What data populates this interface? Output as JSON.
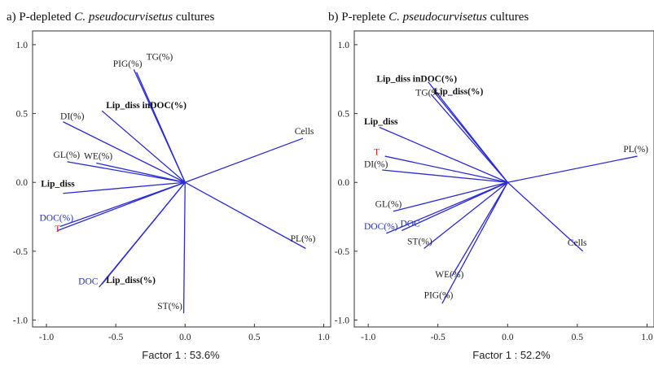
{
  "chart_data": [
    {
      "type": "biplot",
      "title": {
        "prefix": "a) P-depleted ",
        "species": "C. pseudocurvisetus",
        "suffix": " cultures"
      },
      "xlabel": "Factor 1 : 53.6%",
      "ylabel": "",
      "xlim": [
        -1.1,
        1.05
      ],
      "ylim": [
        -1.05,
        1.1
      ],
      "xticks": [
        "-1.0",
        "-0.5",
        "0.0",
        "0.5",
        "1.0"
      ],
      "yticks": [
        "1.0",
        "0.5",
        "0.0",
        "-0.5",
        "-1.0"
      ],
      "grid": false,
      "vectors": [
        {
          "label": "PIG(%)",
          "x": -0.37,
          "y": 0.82,
          "lx": -0.52,
          "ly": 0.84,
          "bold": false,
          "color": "#222222"
        },
        {
          "label": "TG(%)",
          "x": -0.35,
          "y": 0.8,
          "lx": -0.28,
          "ly": 0.89,
          "bold": false,
          "color": "#222222"
        },
        {
          "label": "Lip_diss inDOC(%)",
          "x": -0.6,
          "y": 0.52,
          "lx": -0.57,
          "ly": 0.54,
          "bold": true,
          "color": "#111111"
        },
        {
          "label": "DI(%)",
          "x": -0.88,
          "y": 0.44,
          "lx": -0.9,
          "ly": 0.46,
          "bold": false,
          "color": "#222222"
        },
        {
          "label": "Cells",
          "x": 0.85,
          "y": 0.32,
          "lx": 0.79,
          "ly": 0.35,
          "bold": false,
          "color": "#222222"
        },
        {
          "label": "GL(%)",
          "x": -0.85,
          "y": 0.15,
          "lx": -0.95,
          "ly": 0.18,
          "bold": false,
          "color": "#222222"
        },
        {
          "label": "WE(%)",
          "x": -0.64,
          "y": 0.14,
          "lx": -0.73,
          "ly": 0.17,
          "bold": false,
          "color": "#222222"
        },
        {
          "label": "Lip_diss",
          "x": -0.88,
          "y": -0.08,
          "lx": -1.04,
          "ly": -0.03,
          "bold": true,
          "color": "#111111"
        },
        {
          "label": "DOC(%)",
          "x": -0.9,
          "y": -0.32,
          "lx": -1.05,
          "ly": -0.28,
          "bold": false,
          "color": "#2233bb"
        },
        {
          "label": "T",
          "x": -0.92,
          "y": -0.35,
          "lx": -0.94,
          "ly": -0.36,
          "bold": false,
          "color": "#dd2222"
        },
        {
          "label": "PL(%)",
          "x": 0.87,
          "y": -0.48,
          "lx": 0.76,
          "ly": -0.43,
          "bold": false,
          "color": "#222222"
        },
        {
          "label": "DOC",
          "x": -0.62,
          "y": -0.76,
          "lx": -0.77,
          "ly": -0.74,
          "bold": false,
          "color": "#2233bb"
        },
        {
          "label": "Lip_diss(%)",
          "x": -0.6,
          "y": -0.74,
          "lx": -0.57,
          "ly": -0.73,
          "bold": true,
          "color": "#111111"
        },
        {
          "label": "ST(%)",
          "x": -0.01,
          "y": -0.95,
          "lx": -0.2,
          "ly": -0.92,
          "bold": false,
          "color": "#222222"
        }
      ]
    },
    {
      "type": "biplot",
      "title": {
        "prefix": "b) P-replete ",
        "species": "C. pseudocurvisetus",
        "suffix": " cultures"
      },
      "xlabel": "Factor 1 : 52.2%",
      "ylabel": "",
      "xlim": [
        -1.1,
        1.05
      ],
      "ylim": [
        -1.05,
        1.1
      ],
      "xticks": [
        "-1.0",
        "-0.5",
        "0.0",
        "0.5",
        "1.0"
      ],
      "yticks": [
        "1.0",
        "0.5",
        "0.0",
        "-0.5",
        "-1.0"
      ],
      "grid": false,
      "vectors": [
        {
          "label": "Lip_diss inDOC(%)",
          "x": -0.57,
          "y": 0.73,
          "lx": -0.94,
          "ly": 0.73,
          "bold": true,
          "color": "#111111"
        },
        {
          "label": "TG(%)",
          "x": -0.55,
          "y": 0.64,
          "lx": -0.66,
          "ly": 0.63,
          "bold": false,
          "color": "#222222"
        },
        {
          "label": "Lip_diss(%)",
          "x": -0.53,
          "y": 0.66,
          "lx": -0.53,
          "ly": 0.64,
          "bold": true,
          "color": "#111111"
        },
        {
          "label": "Lip_diss",
          "x": -0.92,
          "y": 0.4,
          "lx": -1.03,
          "ly": 0.42,
          "bold": true,
          "color": "#111111"
        },
        {
          "label": "T",
          "x": -0.88,
          "y": 0.19,
          "lx": -0.96,
          "ly": 0.2,
          "bold": false,
          "color": "#dd2222"
        },
        {
          "label": "DI(%)",
          "x": -0.9,
          "y": 0.09,
          "lx": -1.03,
          "ly": 0.11,
          "bold": false,
          "color": "#222222"
        },
        {
          "label": "PL(%)",
          "x": 0.93,
          "y": 0.19,
          "lx": 0.83,
          "ly": 0.22,
          "bold": false,
          "color": "#222222"
        },
        {
          "label": "GL(%)",
          "x": -0.82,
          "y": -0.21,
          "lx": -0.95,
          "ly": -0.18,
          "bold": false,
          "color": "#222222"
        },
        {
          "label": "DOC(%)",
          "x": -0.87,
          "y": -0.37,
          "lx": -1.03,
          "ly": -0.34,
          "bold": false,
          "color": "#2233bb"
        },
        {
          "label": "DOC",
          "x": -0.76,
          "y": -0.35,
          "lx": -0.77,
          "ly": -0.32,
          "bold": false,
          "color": "#2233bb"
        },
        {
          "label": "ST(%)",
          "x": -0.6,
          "y": -0.48,
          "lx": -0.72,
          "ly": -0.45,
          "bold": false,
          "color": "#222222"
        },
        {
          "label": "Cells",
          "x": 0.54,
          "y": -0.5,
          "lx": 0.43,
          "ly": -0.46,
          "bold": false,
          "color": "#222222"
        },
        {
          "label": "WE(%)",
          "x": -0.4,
          "y": -0.68,
          "lx": -0.52,
          "ly": -0.69,
          "bold": false,
          "color": "#222222"
        },
        {
          "label": "PIG(%)",
          "x": -0.47,
          "y": -0.88,
          "lx": -0.6,
          "ly": -0.84,
          "bold": false,
          "color": "#222222"
        }
      ]
    }
  ]
}
